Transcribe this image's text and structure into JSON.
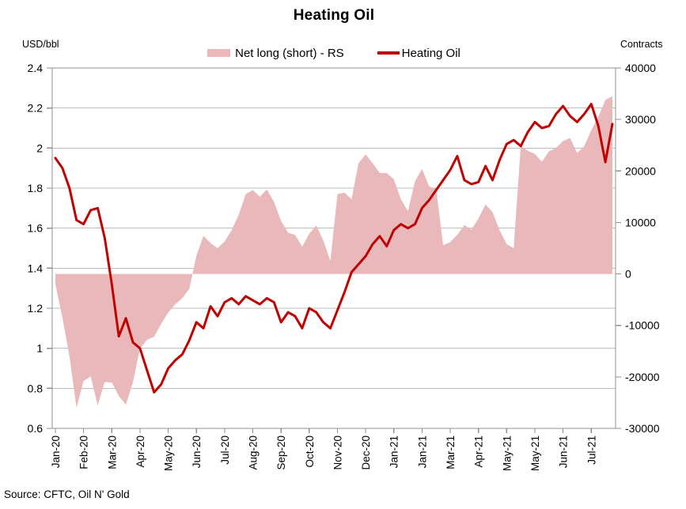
{
  "header": {
    "title": "Heating Oil"
  },
  "legend": {
    "items": [
      {
        "label": "Net long (short) - RS",
        "swatch": "area"
      },
      {
        "label": "Heating Oil",
        "swatch": "line"
      }
    ]
  },
  "axes": {
    "left_unit": "USD/bbl",
    "right_unit": "Contracts"
  },
  "footer": {
    "source": "Source: CFTC, Oil N' Gold"
  },
  "chart_data": {
    "type": "combo",
    "title": "Heating Oil",
    "subtitle": "",
    "n_points": 80,
    "x_label_interval": 4,
    "x_tick_labels": [
      "Jan-20",
      "Feb-20",
      "Mar-20",
      "Apr-20",
      "May-20",
      "Jun-20",
      "Jul-20",
      "Aug-20",
      "Sep-20",
      "Oct-20",
      "Nov-20",
      "Dec-20",
      "Jan-21",
      "Jan-21",
      "Mar-21",
      "Apr-21",
      "May-21",
      "May-21",
      "Jun-21",
      "Jul-21"
    ],
    "left_axis": {
      "label": "USD/bbl",
      "min": 0.6,
      "max": 2.4,
      "step": 0.2,
      "tick_labels": [
        "2.4",
        "2.2",
        "2",
        "1.8",
        "1.6",
        "1.4",
        "1.2",
        "1",
        "0.8",
        "0.6"
      ]
    },
    "right_axis": {
      "label": "Contracts",
      "min": -30000,
      "max": 40000,
      "step": 10000,
      "tick_labels": [
        "40000",
        "30000",
        "20000",
        "10000",
        "0",
        "-10000",
        "-20000",
        "-30000"
      ]
    },
    "grid": true,
    "legend_position": "top",
    "series": [
      {
        "name": "Net long (short) - RS",
        "type": "area",
        "axis": "right",
        "color": "#e8b8ba",
        "values": [
          -2000,
          -8500,
          -16000,
          -26000,
          -20800,
          -19900,
          -25500,
          -21000,
          -21100,
          -23700,
          -25400,
          -21000,
          -14500,
          -12800,
          -12200,
          -9700,
          -7500,
          -5900,
          -4700,
          -2900,
          3500,
          7400,
          6000,
          5000,
          6300,
          8500,
          11500,
          15500,
          16300,
          15000,
          16400,
          14000,
          10300,
          8000,
          7600,
          5300,
          7800,
          9400,
          6500,
          2500,
          15500,
          15800,
          14500,
          21500,
          23200,
          21500,
          19600,
          19600,
          18400,
          14500,
          12200,
          18000,
          20400,
          17000,
          16500,
          5600,
          6200,
          7600,
          9500,
          8600,
          10800,
          13500,
          12000,
          8500,
          5800,
          5000,
          24900,
          23900,
          23300,
          21800,
          23800,
          24500,
          25800,
          26400,
          23500,
          24800,
          27900,
          30500,
          33800,
          34500
        ]
      },
      {
        "name": "Heating Oil",
        "type": "line",
        "axis": "left",
        "color": "#c00000",
        "values": [
          1.95,
          1.9,
          1.8,
          1.64,
          1.62,
          1.69,
          1.7,
          1.55,
          1.32,
          1.06,
          1.15,
          1.03,
          1.0,
          0.89,
          0.78,
          0.82,
          0.9,
          0.94,
          0.97,
          1.04,
          1.13,
          1.1,
          1.21,
          1.16,
          1.23,
          1.25,
          1.22,
          1.26,
          1.24,
          1.22,
          1.25,
          1.23,
          1.13,
          1.18,
          1.16,
          1.1,
          1.2,
          1.18,
          1.13,
          1.1,
          1.19,
          1.28,
          1.38,
          1.42,
          1.46,
          1.52,
          1.56,
          1.51,
          1.59,
          1.62,
          1.6,
          1.62,
          1.7,
          1.74,
          1.79,
          1.84,
          1.89,
          1.96,
          1.84,
          1.82,
          1.83,
          1.91,
          1.84,
          1.94,
          2.02,
          2.04,
          2.01,
          2.08,
          2.13,
          2.1,
          2.11,
          2.17,
          2.21,
          2.16,
          2.13,
          2.17,
          2.22,
          2.11,
          1.93,
          2.12
        ]
      }
    ],
    "colors": {
      "area": "#e8b8ba",
      "line": "#c00000",
      "gridline": "#bdbdbd",
      "frame": "#909090",
      "text": "#000000"
    }
  }
}
